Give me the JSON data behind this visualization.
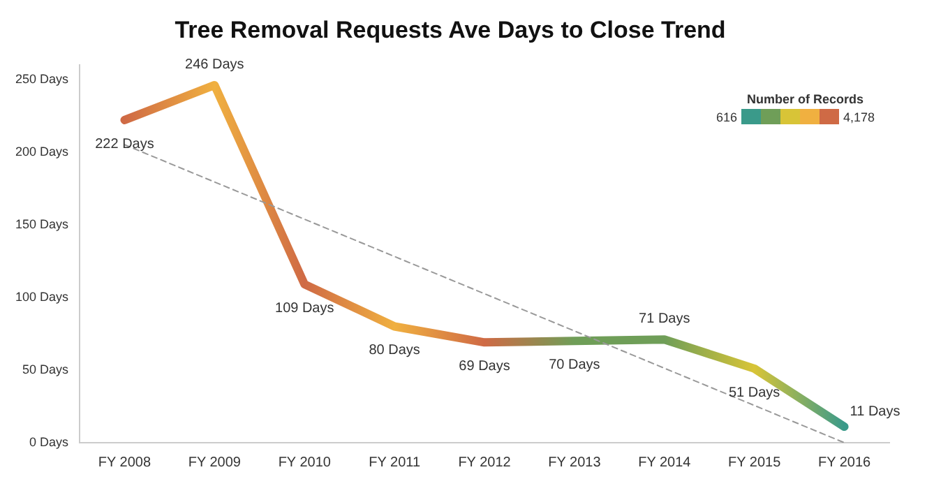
{
  "chart_data": {
    "type": "line",
    "title": "Tree Removal Requests Ave Days to Close Trend",
    "categories": [
      "FY 2008",
      "FY 2009",
      "FY 2010",
      "FY 2011",
      "FY 2012",
      "FY 2013",
      "FY 2014",
      "FY 2015",
      "FY 2016"
    ],
    "series": [
      {
        "values": [
          222,
          246,
          109,
          80,
          69,
          70,
          71,
          51,
          11
        ],
        "colors": [
          "#cf6a45",
          "#f0b040",
          "#cf6a45",
          "#f0b040",
          "#cf6a45",
          "#6f9e58",
          "#6f9e58",
          "#d8c437",
          "#3a9a8a"
        ],
        "value_labels": [
          "222 Days",
          "246 Days",
          "109 Days",
          "80 Days",
          "69 Days",
          "70 Days",
          "71 Days",
          "51 Days",
          "11 Days"
        ]
      },
      {
        "type": "line",
        "x": [
          "FY 2008",
          "FY 2016"
        ],
        "values": [
          205,
          0
        ],
        "color": "#999999",
        "line_style": "dashed"
      }
    ],
    "ylim": [
      0,
      260
    ],
    "yticks": [
      {
        "value": 0,
        "label": "0 Days"
      },
      {
        "value": 50,
        "label": "50 Days"
      },
      {
        "value": 100,
        "label": "100 Days"
      },
      {
        "value": 150,
        "label": "150 Days"
      },
      {
        "value": 200,
        "label": "200 Days"
      },
      {
        "value": 250,
        "label": "250 Days"
      }
    ],
    "annotations": [
      "Number of Records",
      "616",
      "4,178"
    ],
    "grid": false,
    "legend": false,
    "marker": "none"
  }
}
